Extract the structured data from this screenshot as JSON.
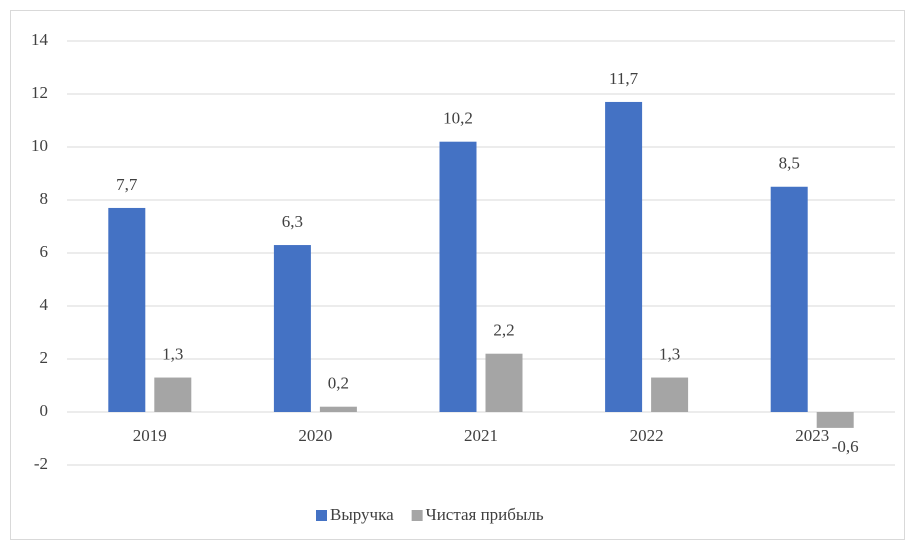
{
  "chart_data": {
    "type": "bar",
    "categories": [
      "2019",
      "2020",
      "2021",
      "2022",
      "2023"
    ],
    "series": [
      {
        "name": "Выручка",
        "color": "#4472c4",
        "values": [
          7.7,
          6.3,
          10.2,
          11.7,
          8.5
        ],
        "value_labels": [
          "7,7",
          "6,3",
          "10,2",
          "11,7",
          "8,5"
        ]
      },
      {
        "name": "Чистая прибыль",
        "color": "#a5a5a5",
        "values": [
          1.3,
          0.2,
          2.2,
          1.3,
          -0.6
        ],
        "value_labels": [
          "1,3",
          "0,2",
          "2,2",
          "1,3",
          "-0,6"
        ]
      }
    ],
    "ylim": [
      -2,
      14
    ],
    "yticks": [
      -2,
      0,
      2,
      4,
      6,
      8,
      10,
      12,
      14
    ],
    "grid": true,
    "legend": "bottom"
  }
}
